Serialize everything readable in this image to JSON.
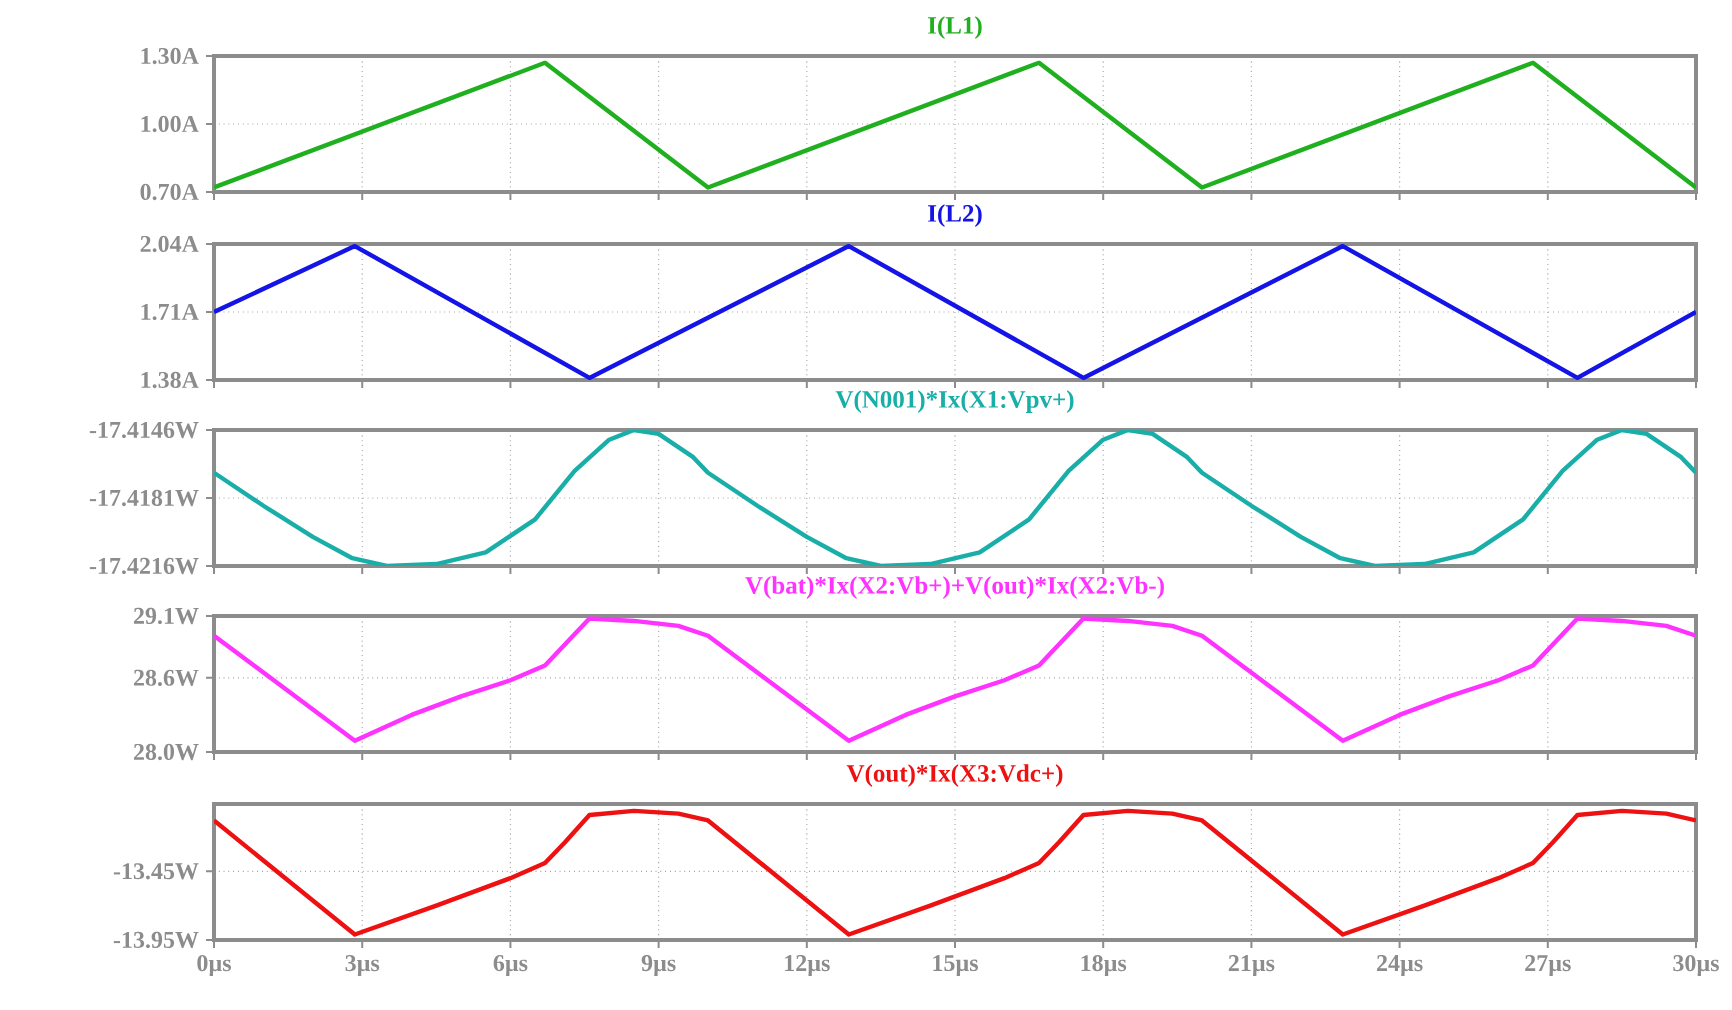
{
  "chart_data": [
    {
      "type": "line",
      "title": "I(L1)",
      "xlim": [
        0,
        30
      ],
      "ylim": [
        0.7,
        1.3
      ],
      "tick_labels": "y",
      "grid": true,
      "marker": "none",
      "line_style": "solid",
      "xticks": [
        {
          "value": 0,
          "label": null
        },
        {
          "value": 3,
          "label": null
        },
        {
          "value": 6,
          "label": null
        },
        {
          "value": 9,
          "label": null
        },
        {
          "value": 12,
          "label": null
        },
        {
          "value": 15,
          "label": null
        },
        {
          "value": 18,
          "label": null
        },
        {
          "value": 21,
          "label": null
        },
        {
          "value": 24,
          "label": null
        },
        {
          "value": 27,
          "label": null
        },
        {
          "value": 30,
          "label": null
        }
      ],
      "yticks": [
        {
          "value": 0.7,
          "label": "0.70A"
        },
        {
          "value": 1.0,
          "label": "1.00A"
        },
        {
          "value": 1.3,
          "label": "1.30A"
        }
      ],
      "series": [
        {
          "color": "#1faf1f",
          "x": [
            0,
            6.7,
            10,
            16.7,
            20,
            26.7,
            30
          ],
          "values": [
            0.72,
            1.27,
            0.72,
            1.27,
            0.72,
            1.27,
            0.72
          ]
        }
      ]
    },
    {
      "type": "line",
      "title": "I(L2)",
      "xlim": [
        0,
        30
      ],
      "ylim": [
        1.38,
        2.04
      ],
      "tick_labels": "y",
      "grid": true,
      "marker": "none",
      "line_style": "solid",
      "xticks": [
        {
          "value": 0,
          "label": null
        },
        {
          "value": 3,
          "label": null
        },
        {
          "value": 6,
          "label": null
        },
        {
          "value": 9,
          "label": null
        },
        {
          "value": 12,
          "label": null
        },
        {
          "value": 15,
          "label": null
        },
        {
          "value": 18,
          "label": null
        },
        {
          "value": 21,
          "label": null
        },
        {
          "value": 24,
          "label": null
        },
        {
          "value": 27,
          "label": null
        },
        {
          "value": 30,
          "label": null
        }
      ],
      "yticks": [
        {
          "value": 1.38,
          "label": "1.38A"
        },
        {
          "value": 1.71,
          "label": "1.71A"
        },
        {
          "value": 2.04,
          "label": "2.04A"
        }
      ],
      "series": [
        {
          "color": "#1414e6",
          "x": [
            0,
            2.85,
            7.6,
            12.85,
            17.6,
            22.85,
            27.6,
            30
          ],
          "values": [
            1.71,
            2.03,
            1.39,
            2.03,
            1.39,
            2.03,
            1.39,
            1.71
          ]
        }
      ]
    },
    {
      "type": "line",
      "title": "V(N001)*Ix(X1:Vpv+)",
      "xlim": [
        0,
        30
      ],
      "ylim": [
        -17.4216,
        -17.4146
      ],
      "tick_labels": "y",
      "grid": true,
      "marker": "none",
      "line_style": "solid",
      "xticks": [
        {
          "value": 0,
          "label": null
        },
        {
          "value": 3,
          "label": null
        },
        {
          "value": 6,
          "label": null
        },
        {
          "value": 9,
          "label": null
        },
        {
          "value": 12,
          "label": null
        },
        {
          "value": 15,
          "label": null
        },
        {
          "value": 18,
          "label": null
        },
        {
          "value": 21,
          "label": null
        },
        {
          "value": 24,
          "label": null
        },
        {
          "value": 27,
          "label": null
        },
        {
          "value": 30,
          "label": null
        }
      ],
      "yticks": [
        {
          "value": -17.4216,
          "label": "-17.4216W"
        },
        {
          "value": -17.4181,
          "label": "-17.4181W"
        },
        {
          "value": -17.4146,
          "label": "-17.4146W"
        }
      ],
      "series": [
        {
          "color": "#1aaea9",
          "x": [
            0,
            1,
            2,
            2.8,
            3.5,
            4.5,
            5.5,
            6.5,
            7.3,
            8,
            8.5,
            9,
            9.7,
            10,
            11,
            12,
            12.8,
            13.5,
            14.5,
            15.5,
            16.5,
            17.3,
            18,
            18.5,
            19,
            19.7,
            20,
            21,
            22,
            22.8,
            23.5,
            24.5,
            25.5,
            26.5,
            27.3,
            28,
            28.5,
            29,
            29.7,
            30
          ],
          "values": [
            -17.4168,
            -17.4185,
            -17.4201,
            -17.4212,
            -17.4216,
            -17.4215,
            -17.4209,
            -17.4192,
            -17.4167,
            -17.4151,
            -17.4146,
            -17.4148,
            -17.416,
            -17.4168,
            -17.4185,
            -17.4201,
            -17.4212,
            -17.4216,
            -17.4215,
            -17.4209,
            -17.4192,
            -17.4167,
            -17.4151,
            -17.4146,
            -17.4148,
            -17.416,
            -17.4168,
            -17.4185,
            -17.4201,
            -17.4212,
            -17.4216,
            -17.4215,
            -17.4209,
            -17.4192,
            -17.4167,
            -17.4151,
            -17.4146,
            -17.4148,
            -17.416,
            -17.4168
          ]
        }
      ]
    },
    {
      "type": "line",
      "title": "V(bat)*Ix(X2:Vb+)+V(out)*Ix(X2:Vb-)",
      "xlim": [
        0,
        30
      ],
      "ylim": [
        28.0,
        29.1
      ],
      "tick_labels": "y",
      "grid": true,
      "marker": "none",
      "line_style": "solid",
      "xticks": [
        {
          "value": 0,
          "label": null
        },
        {
          "value": 3,
          "label": null
        },
        {
          "value": 6,
          "label": null
        },
        {
          "value": 9,
          "label": null
        },
        {
          "value": 12,
          "label": null
        },
        {
          "value": 15,
          "label": null
        },
        {
          "value": 18,
          "label": null
        },
        {
          "value": 21,
          "label": null
        },
        {
          "value": 24,
          "label": null
        },
        {
          "value": 27,
          "label": null
        },
        {
          "value": 30,
          "label": null
        }
      ],
      "yticks": [
        {
          "value": 28.0,
          "label": "28.0W"
        },
        {
          "value": 28.6,
          "label": "28.6W"
        },
        {
          "value": 29.1,
          "label": "29.1W"
        }
      ],
      "series": [
        {
          "color": "#ff33ff",
          "x": [
            0,
            2.85,
            4,
            5,
            6,
            6.7,
            7.6,
            8.5,
            9.4,
            10,
            12.85,
            14,
            15,
            16,
            16.7,
            17.6,
            18.5,
            19.4,
            20,
            22.85,
            24,
            25,
            26,
            26.7,
            27.6,
            28.5,
            29.4,
            30
          ],
          "values": [
            28.94,
            28.09,
            28.3,
            28.45,
            28.58,
            28.7,
            29.08,
            29.06,
            29.02,
            28.94,
            28.09,
            28.3,
            28.45,
            28.58,
            28.7,
            29.08,
            29.06,
            29.02,
            28.94,
            28.09,
            28.3,
            28.45,
            28.58,
            28.7,
            29.08,
            29.06,
            29.02,
            28.94
          ]
        }
      ]
    },
    {
      "type": "line",
      "title": "V(out)*Ix(X3:Vdc+)",
      "xlim": [
        0,
        30
      ],
      "ylim": [
        -13.95,
        -12.96
      ],
      "grid": true,
      "marker": "none",
      "line_style": "solid",
      "xticks": [
        {
          "value": 0,
          "label": "0µs"
        },
        {
          "value": 3,
          "label": "3µs"
        },
        {
          "value": 6,
          "label": "6µs"
        },
        {
          "value": 9,
          "label": "9µs"
        },
        {
          "value": 12,
          "label": "12µs"
        },
        {
          "value": 15,
          "label": "15µs"
        },
        {
          "value": 18,
          "label": "18µs"
        },
        {
          "value": 21,
          "label": "21µs"
        },
        {
          "value": 24,
          "label": "24µs"
        },
        {
          "value": 27,
          "label": "27µs"
        },
        {
          "value": 30,
          "label": "30µs"
        }
      ],
      "yticks": [
        {
          "value": -13.95,
          "label": "-13.95W"
        },
        {
          "value": -13.45,
          "label": "-13.45W"
        }
      ],
      "series": [
        {
          "color": "#ee1111",
          "x": [
            0,
            2.85,
            4.5,
            6,
            6.7,
            7.1,
            7.6,
            8.5,
            9.4,
            10,
            12.85,
            14.5,
            16,
            16.7,
            17.1,
            17.6,
            18.5,
            19.4,
            20,
            22.85,
            24.5,
            26,
            26.7,
            27.1,
            27.6,
            28.5,
            29.4,
            30
          ],
          "values": [
            -13.08,
            -13.91,
            -13.7,
            -13.5,
            -13.39,
            -13.24,
            -13.04,
            -13.01,
            -13.03,
            -13.08,
            -13.91,
            -13.7,
            -13.5,
            -13.39,
            -13.24,
            -13.04,
            -13.01,
            -13.03,
            -13.08,
            -13.91,
            -13.7,
            -13.5,
            -13.39,
            -13.24,
            -13.04,
            -13.01,
            -13.03,
            -13.08
          ]
        }
      ]
    }
  ]
}
